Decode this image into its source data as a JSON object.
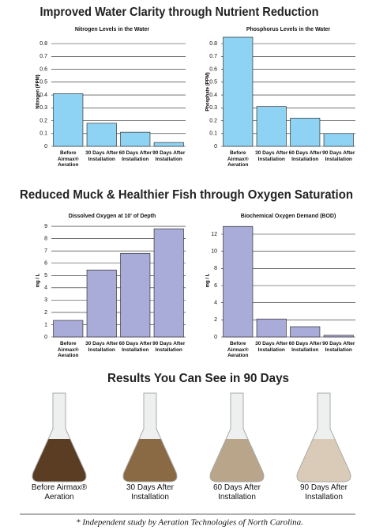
{
  "headings": [
    "Improved Water Clarity through Nutrient Reduction",
    "Reduced Muck & Healthier Fish through Oxygen Saturation",
    "Results You Can See in 90 Days"
  ],
  "chart_data": [
    {
      "type": "bar",
      "title": "Nitrogen Levels in the Water",
      "y_label": "Nitrogen (PPM)",
      "categories": [
        "Before Airmax® Aeration",
        "30 Days After Installation",
        "60 Days After Installation",
        "90 Days After Installation"
      ],
      "values": [
        0.41,
        0.18,
        0.11,
        0.03
      ],
      "color": "#8fd3f4",
      "ylim": [
        0,
        0.85
      ],
      "yticks": [
        0,
        0.1,
        0.2,
        0.3,
        0.4,
        0.5,
        0.6,
        0.7,
        0.8
      ],
      "grid": true
    },
    {
      "type": "bar",
      "title": "Phosphorus Levels in the Water",
      "y_label": "Phosphate (PPM)",
      "categories": [
        "Before Airmax® Aeration",
        "30 Days After Installation",
        "60 Days After Installation",
        "90 Days After Installation"
      ],
      "values": [
        0.85,
        0.31,
        0.22,
        0.1
      ],
      "color": "#8fd3f4",
      "ylim": [
        0,
        0.85
      ],
      "yticks": [
        0,
        0.1,
        0.2,
        0.3,
        0.4,
        0.5,
        0.6,
        0.7,
        0.8
      ],
      "grid": true
    },
    {
      "type": "bar",
      "title": "Dissolved Oxygen at 10' of Depth",
      "y_label": "mg / L",
      "categories": [
        "Before Airmax® Aeration",
        "30 Days After Installation",
        "60 Days After Installation",
        "90 Days After Installation"
      ],
      "values": [
        1.35,
        5.45,
        6.8,
        8.8
      ],
      "color": "#a9abd8",
      "ylim": [
        0,
        9.2
      ],
      "yticks": [
        0,
        1,
        2,
        3,
        4,
        5,
        6,
        7,
        8,
        9
      ],
      "grid": true
    },
    {
      "type": "bar",
      "title": "Biochemical Oxygen Demand (BOD)",
      "y_label": "mg / L",
      "categories": [
        "Before Airmax® Aeration",
        "30 Days After Installation",
        "60 Days After Installation",
        "90 Days After Installation"
      ],
      "values": [
        12.9,
        2.1,
        1.2,
        0.2
      ],
      "color": "#a9abd8",
      "ylim": [
        0,
        13.2
      ],
      "yticks": [
        0,
        2,
        4,
        6,
        8,
        10,
        12
      ],
      "grid": true
    }
  ],
  "flasks": [
    "Before Airmax® Aeration",
    "30 Days After Installation",
    "60 Days After Installation",
    "90 Days After Installation"
  ],
  "footnote": "* Independent study by Aeration Technologies of North Carolina."
}
